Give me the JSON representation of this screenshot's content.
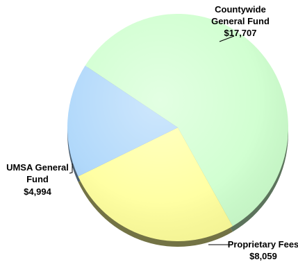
{
  "chart_data": {
    "type": "pie",
    "title": "",
    "slices": [
      {
        "label_lines": [
          "Countywide",
          "General Fund"
        ],
        "value_label": "$17,707",
        "value": 17707,
        "color": "#ccffcc"
      },
      {
        "label_lines": [
          "Proprietary Fees"
        ],
        "value_label": "$8,059",
        "value": 8059,
        "color": "#ffff99"
      },
      {
        "label_lines": [
          "UMSA General",
          "Fund"
        ],
        "value_label": "$4,994",
        "value": 4994,
        "color": "#a8d4fa"
      }
    ],
    "legend": "none"
  }
}
